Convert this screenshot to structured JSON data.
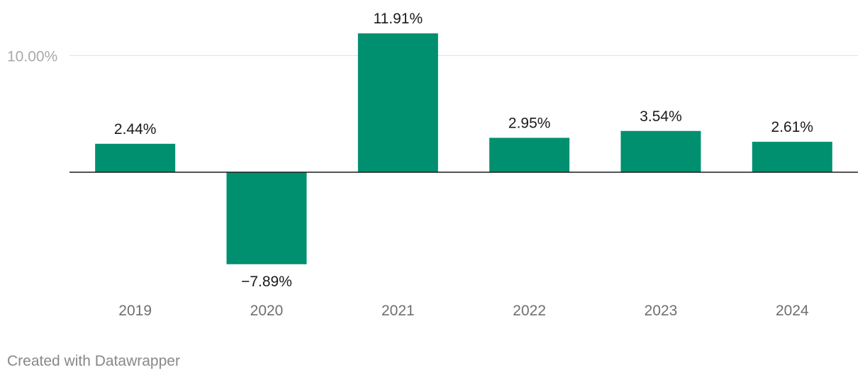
{
  "chart_data": {
    "type": "bar",
    "categories": [
      "2019",
      "2020",
      "2021",
      "2022",
      "2023",
      "2024"
    ],
    "values": [
      2.44,
      -7.89,
      11.91,
      2.95,
      3.54,
      2.61
    ],
    "value_labels": [
      "2.44%",
      "−7.89%",
      "11.91%",
      "2.95%",
      "3.54%",
      "2.61%"
    ],
    "y_ticks": [
      {
        "value": 10,
        "label": "10.00%"
      }
    ],
    "ylim": [
      -10,
      12.5
    ],
    "grid": true,
    "legend": "none",
    "title": "",
    "xlabel": "",
    "ylabel": "",
    "bar_color": "#00906f"
  },
  "footer": {
    "credit": "Created with Datawrapper"
  }
}
